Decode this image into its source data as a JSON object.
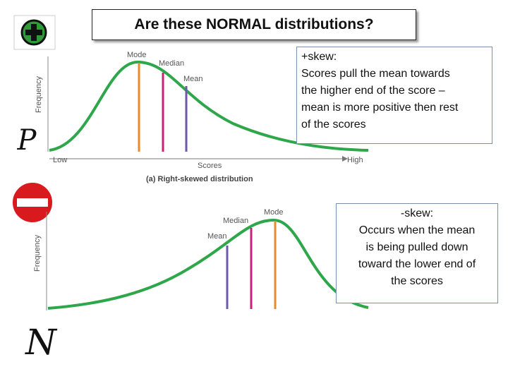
{
  "title": "Are these NORMAL distributions?",
  "positive_letter": "P",
  "negative_letter": "N",
  "right_skew_chart": {
    "y_axis_label": "Frequency",
    "mode_label": "Mode",
    "median_label": "Median",
    "mean_label": "Mean",
    "low_label": "Low",
    "x_axis_label": "Scores",
    "high_label": "High",
    "caption": "(a) Right-skewed distribution"
  },
  "left_skew_chart": {
    "y_axis_label": "Frequency",
    "mode_label": "Mode",
    "median_label": "Median",
    "mean_label": "Mean"
  },
  "positive_note": {
    "lines": [
      "+skew:",
      "Scores pull the mean towards",
      "the higher end of the score –",
      "mean is more positive then rest",
      "of the scores"
    ]
  },
  "negative_note": {
    "lines": [
      "-skew:",
      "Occurs when the mean",
      "is being pulled down",
      "toward the lower end of",
      "the scores"
    ]
  }
}
